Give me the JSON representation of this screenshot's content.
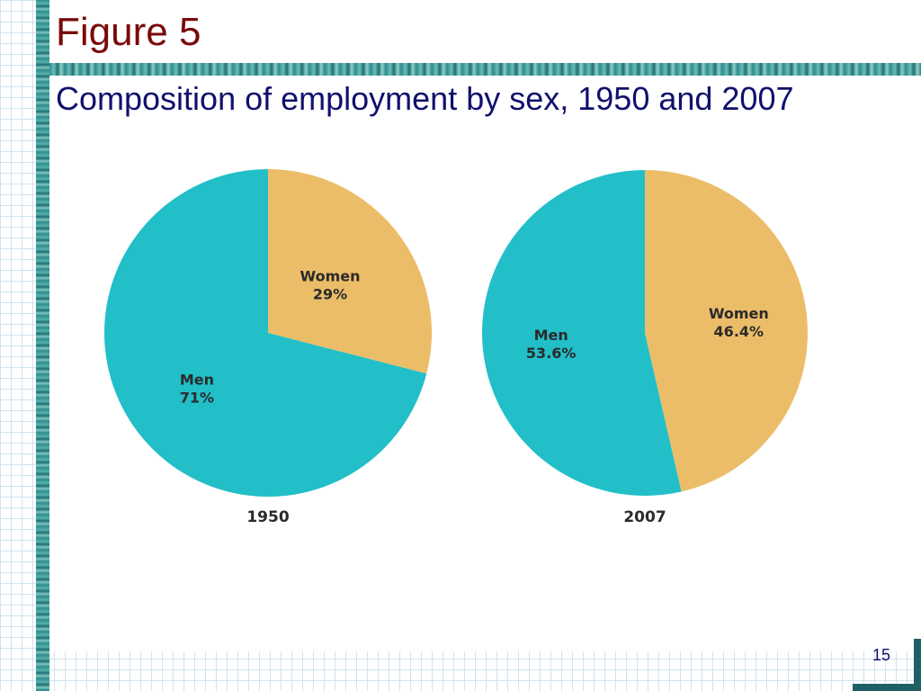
{
  "slide": {
    "figure_label": "Figure 5",
    "page_number": "15"
  },
  "colors": {
    "men": "#22bfc8",
    "women": "#ecbd68",
    "figure_label": "#7a0a0a",
    "title": "#10106e"
  },
  "chart_data": [
    {
      "type": "pie",
      "title": "Composition of employment by sex, 1950 and 2007",
      "caption": "1950",
      "slices": [
        {
          "name": "Women",
          "value": 29,
          "display": "29%",
          "color": "#ecbd68"
        },
        {
          "name": "Men",
          "value": 71,
          "display": "71%",
          "color": "#22bfc8"
        }
      ]
    },
    {
      "type": "pie",
      "caption": "2007",
      "slices": [
        {
          "name": "Women",
          "value": 46.4,
          "display": "46.4%",
          "color": "#ecbd68"
        },
        {
          "name": "Men",
          "value": 53.6,
          "display": "53.6%",
          "color": "#22bfc8"
        }
      ]
    }
  ]
}
